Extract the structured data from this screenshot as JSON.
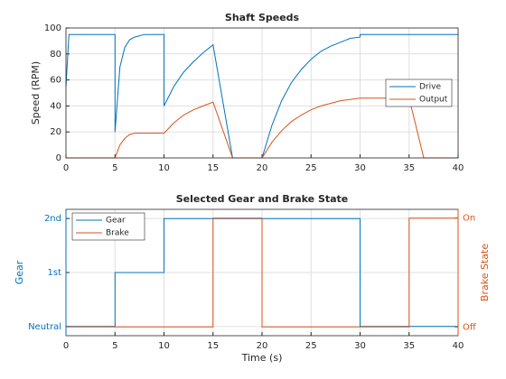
{
  "chart_data": [
    {
      "type": "line",
      "title": "Shaft Speeds",
      "ylabel": "Speed (RPM)",
      "x": [
        0,
        0.3,
        1,
        5,
        5,
        5.5,
        6,
        6.5,
        7,
        8,
        10,
        10,
        11,
        12,
        13,
        14,
        15,
        17,
        20,
        21,
        22,
        23,
        24,
        25,
        26,
        27,
        28,
        29,
        30,
        30,
        35,
        36.5,
        40
      ],
      "series": [
        {
          "name": "Drive",
          "color": "#0072bd",
          "values": [
            55,
            95,
            95,
            95,
            20,
            70,
            85,
            91,
            93,
            95,
            95,
            40,
            55,
            66,
            74,
            81,
            87,
            0,
            0,
            25,
            44,
            58,
            68,
            76,
            82,
            86,
            89,
            92,
            93,
            95,
            95,
            95,
            95
          ]
        },
        {
          "name": "Output",
          "color": "#d95319",
          "values": [
            0,
            0,
            0,
            0,
            0,
            10,
            15,
            18,
            19,
            19,
            19,
            19,
            27,
            33,
            37,
            40,
            43,
            0,
            0,
            12,
            21,
            28,
            33,
            37,
            40,
            42,
            44,
            45,
            46,
            46,
            46,
            0,
            0
          ]
        }
      ],
      "xlim": [
        0,
        40
      ],
      "xticks": [
        0,
        5,
        10,
        15,
        20,
        25,
        30,
        35,
        40
      ],
      "ylim": [
        0,
        100
      ],
      "yticks": [
        0,
        20,
        40,
        60,
        80,
        100
      ],
      "grid": true,
      "legend": "east"
    },
    {
      "type": "step",
      "title": "Selected Gear and Brake State",
      "xlabel": "Time (s)",
      "ylabel": "Gear",
      "y2label": "Brake State",
      "series": [
        {
          "name": "Gear",
          "color": "#0072bd",
          "x": [
            0,
            5,
            5,
            10,
            10,
            30,
            30,
            40
          ],
          "values": [
            0,
            0,
            1,
            1,
            2,
            2,
            0,
            0
          ]
        },
        {
          "name": "Brake",
          "color": "#d95319",
          "axis": "y2",
          "x": [
            0,
            15,
            15,
            20,
            20,
            35,
            35,
            40
          ],
          "values": [
            0,
            0,
            1,
            1,
            0,
            0,
            1,
            1
          ]
        }
      ],
      "xlim": [
        0,
        40
      ],
      "xticks": [
        0,
        5,
        10,
        15,
        20,
        25,
        30,
        35,
        40
      ],
      "ylim": [
        -0.17,
        2.17
      ],
      "yticks": [
        {
          "value": 0,
          "label": "Neutral"
        },
        {
          "value": 1,
          "label": "1st"
        },
        {
          "value": 2,
          "label": "2nd"
        }
      ],
      "y2lim": [
        -0.08,
        1.08
      ],
      "y2ticks": [
        {
          "value": 0,
          "label": "Off"
        },
        {
          "value": 1,
          "label": "On"
        }
      ],
      "grid": true,
      "legend": "northwest"
    }
  ]
}
